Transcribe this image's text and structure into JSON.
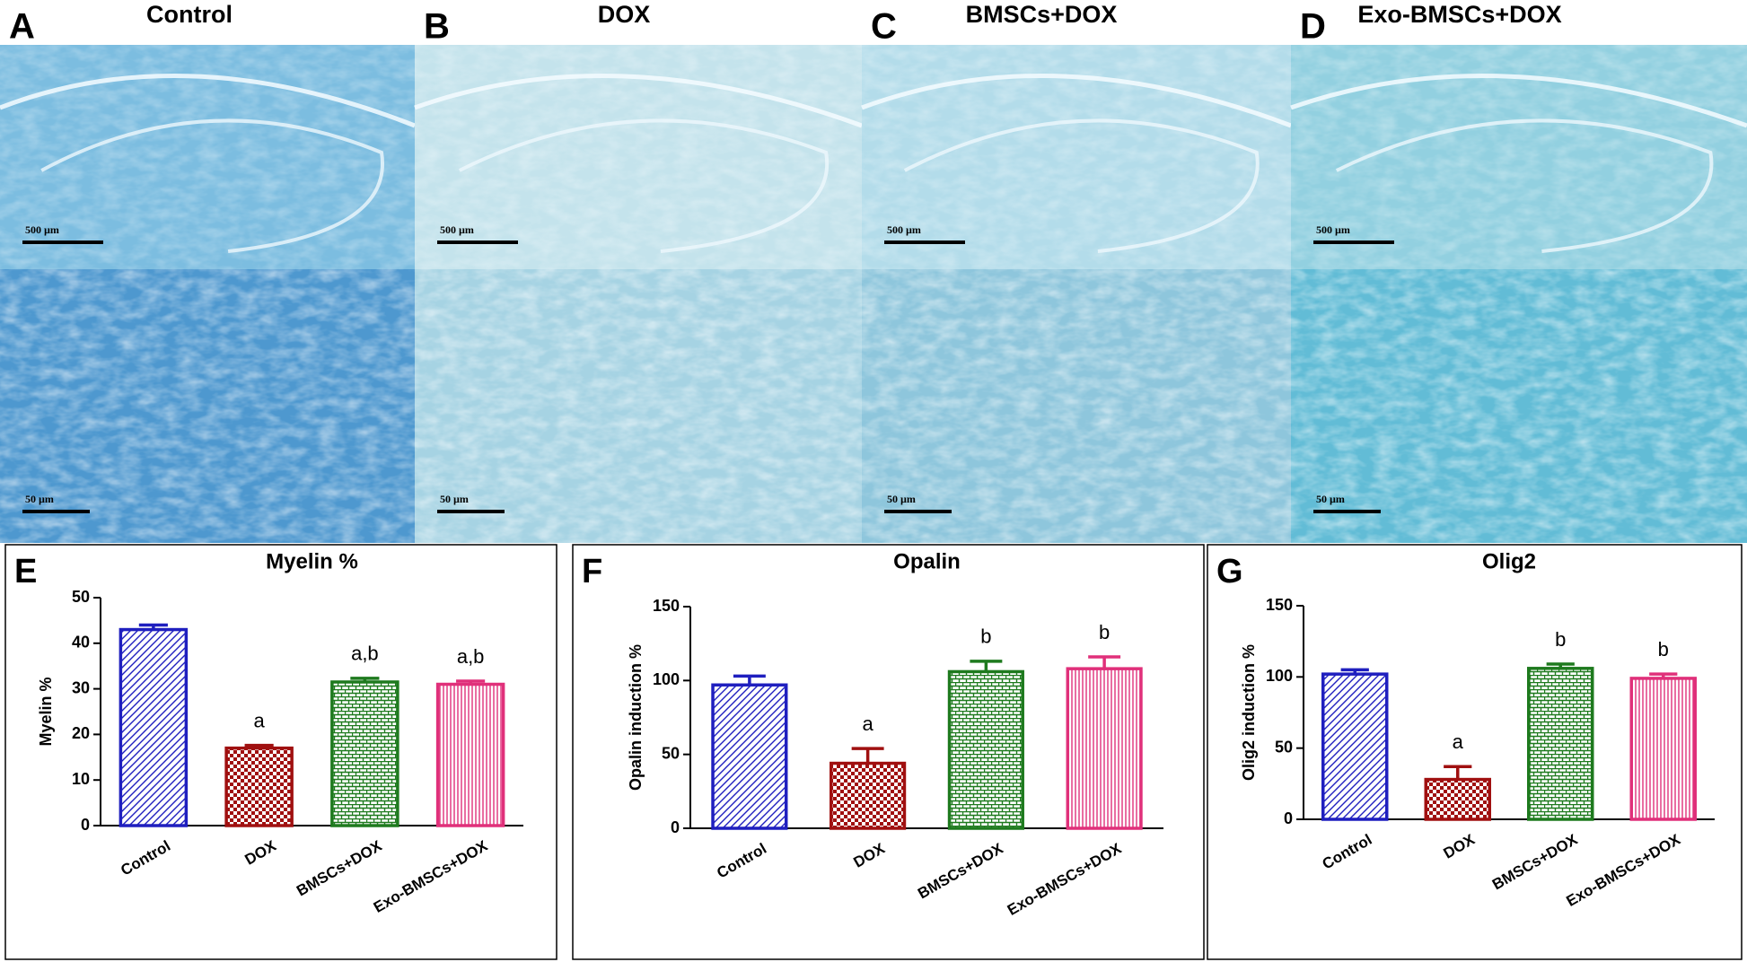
{
  "figure": {
    "columns": [
      {
        "letter": "A",
        "title": "Control",
        "scale_bars": [
          "500 µm",
          "50 µm"
        ]
      },
      {
        "letter": "B",
        "title": "DOX",
        "scale_bars": [
          "500 µm",
          "50 µm"
        ]
      },
      {
        "letter": "C",
        "title": "BMSCs+DOX",
        "scale_bars": [
          "500 µm",
          "50 µm"
        ]
      },
      {
        "letter": "D",
        "title": "Exo-BMSCs+DOX",
        "scale_bars": [
          "500 µm",
          "50 µm"
        ]
      }
    ]
  },
  "chart_data": [
    {
      "type": "bar",
      "panel": "E",
      "title": "Myelin %",
      "ylabel": "Myelin %",
      "categories": [
        "Control",
        "DOX",
        "BMSCs+DOX",
        "Exo-BMSCs+DOX"
      ],
      "values": [
        43,
        17,
        31.5,
        31
      ],
      "errors": [
        1,
        0.6,
        0.8,
        0.7
      ],
      "annotations": [
        null,
        "a",
        "a,b",
        "a,b"
      ],
      "colors": [
        "#1f1fbf",
        "#a01010",
        "#1e7a1e",
        "#e0307a"
      ],
      "patterns": [
        "diagonal",
        "checker",
        "brick",
        "vertical"
      ],
      "ylim": [
        0,
        50
      ],
      "yticks": [
        0,
        10,
        20,
        30,
        40,
        50
      ]
    },
    {
      "type": "bar",
      "panel": "F",
      "title": "Opalin",
      "ylabel": "Opalin induction %",
      "categories": [
        "Control",
        "DOX",
        "BMSCs+DOX",
        "Exo-BMSCs+DOX"
      ],
      "values": [
        97,
        44,
        106,
        108
      ],
      "errors": [
        6,
        10,
        7,
        8
      ],
      "annotations": [
        null,
        "a",
        "b",
        "b"
      ],
      "colors": [
        "#1f1fbf",
        "#a01010",
        "#1e7a1e",
        "#e0307a"
      ],
      "patterns": [
        "diagonal",
        "checker",
        "brick",
        "vertical"
      ],
      "ylim": [
        0,
        150
      ],
      "yticks": [
        0,
        50,
        100,
        150
      ]
    },
    {
      "type": "bar",
      "panel": "G",
      "title": "Olig2",
      "ylabel": "Olig2 induction %",
      "categories": [
        "Control",
        "DOX",
        "BMSCs+DOX",
        "Exo-BMSCs+DOX"
      ],
      "values": [
        102,
        28,
        106,
        99
      ],
      "errors": [
        3,
        9,
        3,
        3
      ],
      "annotations": [
        null,
        "a",
        "b",
        "b"
      ],
      "colors": [
        "#1f1fbf",
        "#a01010",
        "#1e7a1e",
        "#e0307a"
      ],
      "patterns": [
        "diagonal",
        "checker",
        "brick",
        "vertical"
      ],
      "ylim": [
        0,
        150
      ],
      "yticks": [
        0,
        50,
        100,
        150
      ]
    }
  ]
}
